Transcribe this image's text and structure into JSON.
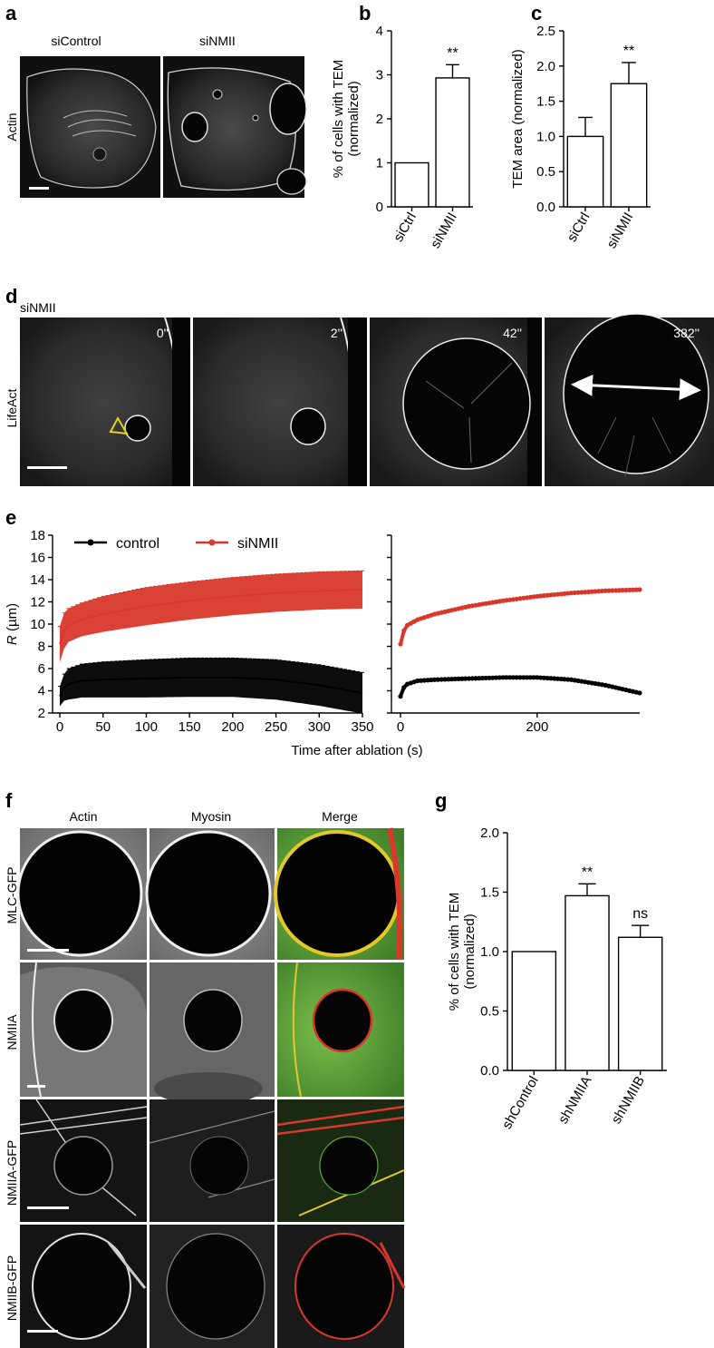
{
  "panels": {
    "a": {
      "letter": "a",
      "row_label": "Actin",
      "columns": [
        "siControl",
        "siNMII"
      ]
    },
    "d": {
      "letter": "d",
      "condition": "siNMII",
      "row_label": "LifeAct",
      "timestamps": [
        "0''",
        "2''",
        "42''",
        "382''"
      ]
    },
    "f": {
      "letter": "f",
      "columns": [
        "Actin",
        "Myosin",
        "Merge"
      ],
      "rows": [
        "MLC-GFP",
        "NMIIA",
        "NMIIA-GFP",
        "NMIIB-GFP"
      ]
    }
  },
  "chart_data": [
    {
      "panel": "b",
      "type": "bar",
      "categories": [
        "siCtrl",
        "siNMII"
      ],
      "values": [
        1.0,
        2.93
      ],
      "errors": [
        0,
        0.3
      ],
      "significance": [
        "",
        "**"
      ],
      "ylabel": [
        "% of cells with TEM",
        "(normalized)"
      ],
      "ylim": [
        0,
        4
      ],
      "yticks": [
        "0",
        "1",
        "2",
        "3",
        "4"
      ]
    },
    {
      "panel": "c",
      "type": "bar",
      "categories": [
        "siCtrl",
        "siNMII"
      ],
      "values": [
        1.0,
        1.75
      ],
      "errors": [
        0.27,
        0.3
      ],
      "significance": [
        "",
        "**"
      ],
      "ylabel": [
        "TEM area (normalized)"
      ],
      "ylim": [
        0,
        2.5
      ],
      "yticks": [
        "0.0",
        "0.5",
        "1.0",
        "1.5",
        "2.0",
        "2.5"
      ]
    },
    {
      "panel": "e",
      "type": "line",
      "xlabel": "Time after ablation (s)",
      "ylabel_italic": "R",
      "ylabel_unit": " (µm)",
      "ylim": [
        2,
        18
      ],
      "yticks": [
        "2",
        "4",
        "6",
        "8",
        "10",
        "12",
        "14",
        "16",
        "18"
      ],
      "left_xlim": [
        0,
        350
      ],
      "left_xticks": [
        "0",
        "50",
        "100",
        "150",
        "200",
        "250",
        "300",
        "350"
      ],
      "right_xlim": [
        0,
        350
      ],
      "right_xticks": [
        "0",
        "200"
      ],
      "series": [
        {
          "name": "control",
          "color": "#000000",
          "t": [
            0,
            5,
            10,
            25,
            50,
            100,
            150,
            200,
            250,
            300,
            350
          ],
          "mean": [
            3.5,
            4.3,
            4.6,
            4.9,
            5.0,
            5.1,
            5.2,
            5.2,
            5.0,
            4.5,
            3.8
          ],
          "sd": [
            0.9,
            1.2,
            1.4,
            1.5,
            1.6,
            1.7,
            1.75,
            1.75,
            1.8,
            1.85,
            1.85
          ]
        },
        {
          "name": "siNMII",
          "color": "#d8382b",
          "t": [
            0,
            5,
            10,
            25,
            50,
            100,
            150,
            200,
            250,
            300,
            350
          ],
          "mean": [
            8.2,
            9.4,
            9.9,
            10.4,
            10.9,
            11.6,
            12.1,
            12.5,
            12.8,
            13.0,
            13.1
          ],
          "sd": [
            1.6,
            1.6,
            1.5,
            1.5,
            1.6,
            1.7,
            1.7,
            1.7,
            1.7,
            1.7,
            1.7
          ]
        }
      ]
    },
    {
      "panel": "g",
      "type": "bar",
      "categories": [
        "shControl",
        "shNMIIA",
        "shNMIIB"
      ],
      "values": [
        1.0,
        1.47,
        1.12
      ],
      "errors": [
        0,
        0.1,
        0.1
      ],
      "significance": [
        "",
        "**",
        "ns"
      ],
      "ylabel": [
        "% of cells with TEM",
        "(normalized)"
      ],
      "ylim": [
        0,
        2
      ],
      "yticks": [
        "0.0",
        "0.5",
        "1.0",
        "1.5",
        "2.0"
      ]
    }
  ],
  "colors": {
    "image_bg": "#0a0a0a",
    "actin_red": "#d8382b",
    "myosin_green": "#5aa838",
    "marker_yellow": "#e6d21a"
  }
}
